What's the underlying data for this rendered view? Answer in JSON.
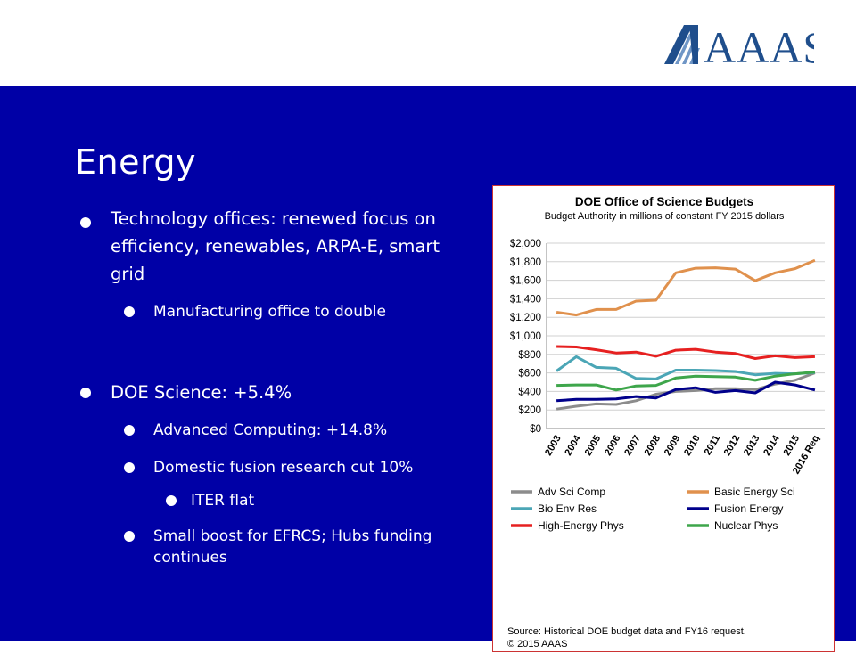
{
  "header": {
    "logo_text": "AAAS"
  },
  "slide": {
    "title": "Energy",
    "bullets": [
      {
        "level": 1,
        "text": "Technology offices: renewed focus on efficiency, renewables, ARPA-E, smart grid"
      },
      {
        "level": 2,
        "text": "Manufacturing office to double"
      },
      {
        "level": 1,
        "text": "DOE Science: +5.4%"
      },
      {
        "level": 2,
        "text": "Advanced Computing: +14.8%"
      },
      {
        "level": 2,
        "text": "Domestic fusion research cut 10%"
      },
      {
        "level": 3,
        "text": "ITER flat"
      },
      {
        "level": 2,
        "text": "Small boost for EFRCS; Hubs funding continues"
      }
    ]
  },
  "chart_data": {
    "type": "line",
    "title": "DOE Office of Science Budgets",
    "subtitle": "Budget Authority in millions of constant FY 2015 dollars",
    "categories": [
      "2003",
      "2004",
      "2005",
      "2006",
      "2007",
      "2008",
      "2009",
      "2010",
      "2011",
      "2012",
      "2013",
      "2014",
      "2015",
      "2016 Req"
    ],
    "ylim": [
      0,
      2000
    ],
    "yticks": [
      "$0",
      "$200",
      "$400",
      "$600",
      "$800",
      "$1,000",
      "$1,200",
      "$1,400",
      "$1,600",
      "$1,800",
      "$2,000"
    ],
    "legend_placement": "bottom",
    "series": [
      {
        "name": "Adv Sci Comp",
        "color": "#8c8c8c",
        "values": [
          210,
          240,
          265,
          260,
          300,
          370,
          400,
          410,
          430,
          430,
          420,
          480,
          520,
          600
        ]
      },
      {
        "name": "Basic Energy Sci",
        "color": "#e0914d",
        "values": [
          1255,
          1225,
          1285,
          1285,
          1375,
          1385,
          1680,
          1730,
          1735,
          1720,
          1595,
          1680,
          1725,
          1815
        ]
      },
      {
        "name": "Bio Env Res",
        "color": "#4ba6b6",
        "values": [
          620,
          775,
          660,
          650,
          540,
          535,
          630,
          630,
          625,
          615,
          580,
          595,
          590,
          605
        ]
      },
      {
        "name": "Fusion Energy",
        "color": "#00008b",
        "values": [
          300,
          315,
          315,
          320,
          345,
          330,
          420,
          440,
          390,
          410,
          385,
          500,
          470,
          415
        ]
      },
      {
        "name": "High-Energy Phys",
        "color": "#e62020",
        "values": [
          885,
          880,
          850,
          815,
          825,
          780,
          845,
          855,
          825,
          810,
          755,
          785,
          765,
          775
        ]
      },
      {
        "name": "Nuclear Phys",
        "color": "#3ea64b",
        "values": [
          465,
          470,
          470,
          415,
          460,
          465,
          545,
          565,
          560,
          555,
          520,
          565,
          590,
          610
        ]
      }
    ],
    "source_note": "Source: Historical DOE budget data and FY16 request.",
    "copyright": "© 2015 AAAS"
  }
}
